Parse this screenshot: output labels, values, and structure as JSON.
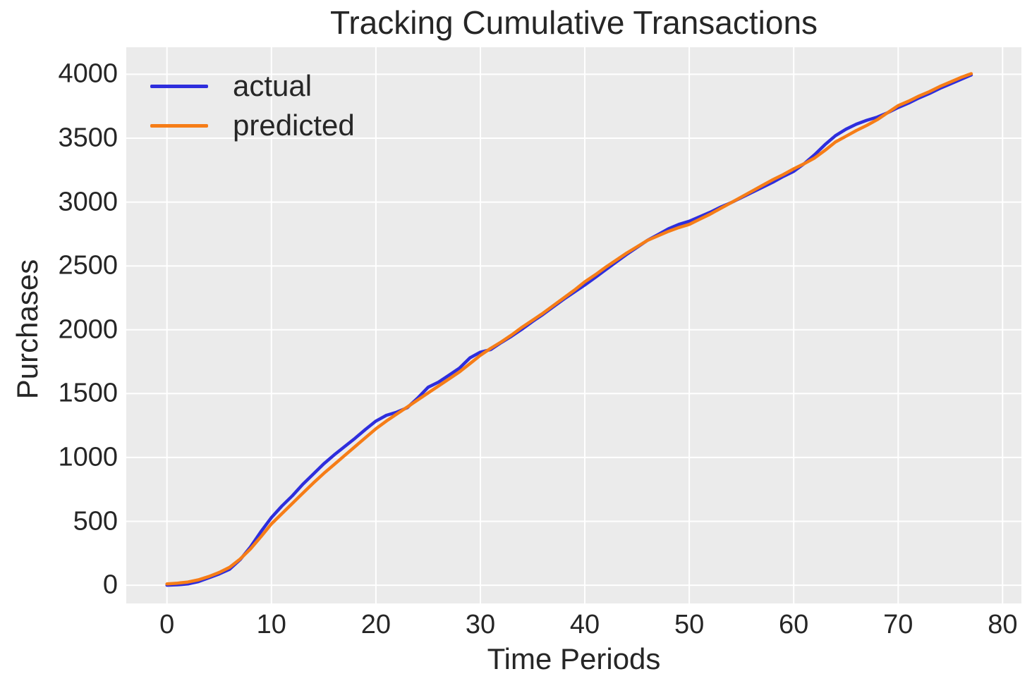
{
  "chart_data": {
    "type": "line",
    "title": "Tracking Cumulative Transactions",
    "xlabel": "Time Periods",
    "ylabel": "Purchases",
    "x_ticks": [
      0,
      10,
      20,
      30,
      40,
      50,
      60,
      70,
      80
    ],
    "y_ticks": [
      0,
      500,
      1000,
      1500,
      2000,
      2500,
      3000,
      3500,
      4000
    ],
    "xlim": [
      -3.9,
      81.8
    ],
    "ylim": [
      -143,
      4212
    ],
    "grid": true,
    "legend_position": "upper left",
    "plot_background": "#ebebeb",
    "grid_color": "#ffffff",
    "text_color": "#262626",
    "x": [
      0,
      1,
      2,
      3,
      4,
      5,
      6,
      7,
      8,
      9,
      10,
      11,
      12,
      13,
      14,
      15,
      16,
      17,
      18,
      19,
      20,
      21,
      22,
      23,
      24,
      25,
      26,
      27,
      28,
      29,
      30,
      31,
      32,
      33,
      34,
      35,
      36,
      37,
      38,
      39,
      40,
      41,
      42,
      43,
      44,
      45,
      46,
      47,
      48,
      49,
      50,
      51,
      52,
      53,
      54,
      55,
      56,
      57,
      58,
      59,
      60,
      61,
      62,
      63,
      64,
      65,
      66,
      67,
      68,
      69,
      70,
      71,
      72,
      73,
      74,
      75,
      76,
      77
    ],
    "series": [
      {
        "name": "actual",
        "color": "#2e2edd",
        "values": [
          0,
          3,
          10,
          28,
          58,
          88,
          125,
          200,
          300,
          420,
          530,
          620,
          700,
          790,
          870,
          950,
          1020,
          1085,
          1150,
          1220,
          1285,
          1330,
          1355,
          1390,
          1465,
          1550,
          1590,
          1645,
          1700,
          1780,
          1825,
          1845,
          1900,
          1950,
          2005,
          2065,
          2120,
          2180,
          2240,
          2295,
          2350,
          2410,
          2470,
          2530,
          2590,
          2645,
          2700,
          2745,
          2790,
          2825,
          2850,
          2885,
          2920,
          2960,
          2995,
          3035,
          3075,
          3115,
          3155,
          3200,
          3240,
          3300,
          3370,
          3450,
          3520,
          3570,
          3610,
          3640,
          3665,
          3700,
          3740,
          3775,
          3815,
          3850,
          3890,
          3925,
          3960,
          3995
        ]
      },
      {
        "name": "predicted",
        "color": "#f67d17",
        "values": [
          10,
          16,
          25,
          42,
          68,
          100,
          140,
          205,
          285,
          380,
          480,
          560,
          640,
          720,
          800,
          875,
          945,
          1015,
          1085,
          1155,
          1225,
          1285,
          1340,
          1395,
          1450,
          1505,
          1560,
          1615,
          1670,
          1735,
          1800,
          1855,
          1905,
          1960,
          2020,
          2075,
          2130,
          2190,
          2250,
          2310,
          2375,
          2430,
          2490,
          2545,
          2600,
          2650,
          2700,
          2735,
          2770,
          2800,
          2825,
          2865,
          2905,
          2950,
          2995,
          3040,
          3085,
          3130,
          3175,
          3215,
          3260,
          3300,
          3345,
          3405,
          3470,
          3515,
          3560,
          3600,
          3645,
          3700,
          3755,
          3790,
          3830,
          3865,
          3905,
          3940,
          3975,
          4005
        ]
      }
    ]
  }
}
